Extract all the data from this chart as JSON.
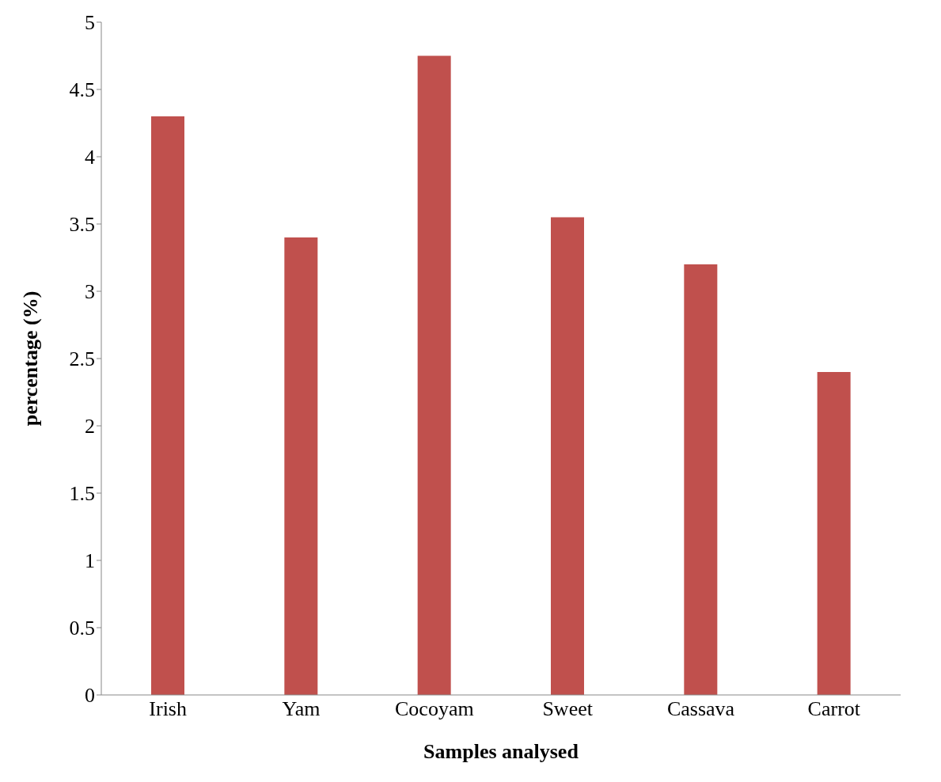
{
  "chart_data": {
    "type": "bar",
    "xlabel": "Samples analysed",
    "ylabel": "percentage (%)",
    "categories": [
      "Irish",
      "Yam",
      "Cocoyam",
      "Sweet",
      "Cassava",
      "Carrot"
    ],
    "values": [
      4.3,
      3.4,
      4.75,
      3.55,
      3.2,
      2.4
    ],
    "color": "#c0504d",
    "ylim": [
      0,
      5
    ],
    "yticks": [
      0,
      0.5,
      1,
      1.5,
      2,
      2.5,
      3,
      3.5,
      4,
      4.5,
      5
    ],
    "grid": false
  }
}
